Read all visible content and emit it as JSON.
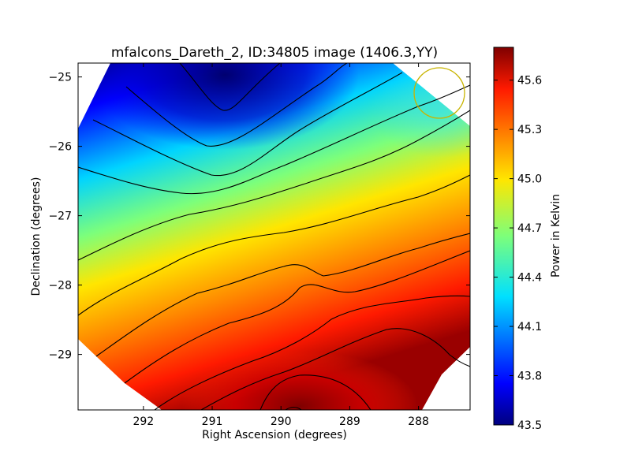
{
  "chart_data": {
    "type": "heatmap",
    "title": "mfalcons_Dareth_2, ID:34805 image (1406.3,YY)",
    "xlabel": "Right Ascension (degrees)",
    "ylabel": "Declination (degrees)",
    "colorbar_label": "Power in Kelvin",
    "xlim": [
      292.95,
      287.25
    ],
    "ylim": [
      -29.8,
      -24.8
    ],
    "x_ticks": [
      292,
      291,
      290,
      289,
      288
    ],
    "y_ticks": [
      -25,
      -26,
      -27,
      -28,
      -29
    ],
    "y_tick_labels": [
      "−25",
      "−26",
      "−27",
      "−28",
      "−29"
    ],
    "colorbar_range": [
      43.5,
      45.8
    ],
    "colorbar_ticks": [
      43.5,
      43.8,
      44.1,
      44.4,
      44.7,
      45.0,
      45.3,
      45.6
    ],
    "colorbar_tick_labels": [
      "43.5",
      "43.8",
      "44.1",
      "44.4",
      "44.7",
      "45.0",
      "45.3",
      "45.6"
    ],
    "colormap": "jet",
    "contour_color": "#000000",
    "beam_circle_color": "#c8b400",
    "grid": false,
    "footprint_shape": "diamond",
    "minimum": {
      "ra": 290.8,
      "dec": -24.9,
      "value": 43.5
    },
    "maximum": {
      "ra": 289.8,
      "dec": -29.8,
      "value": 45.8
    }
  }
}
